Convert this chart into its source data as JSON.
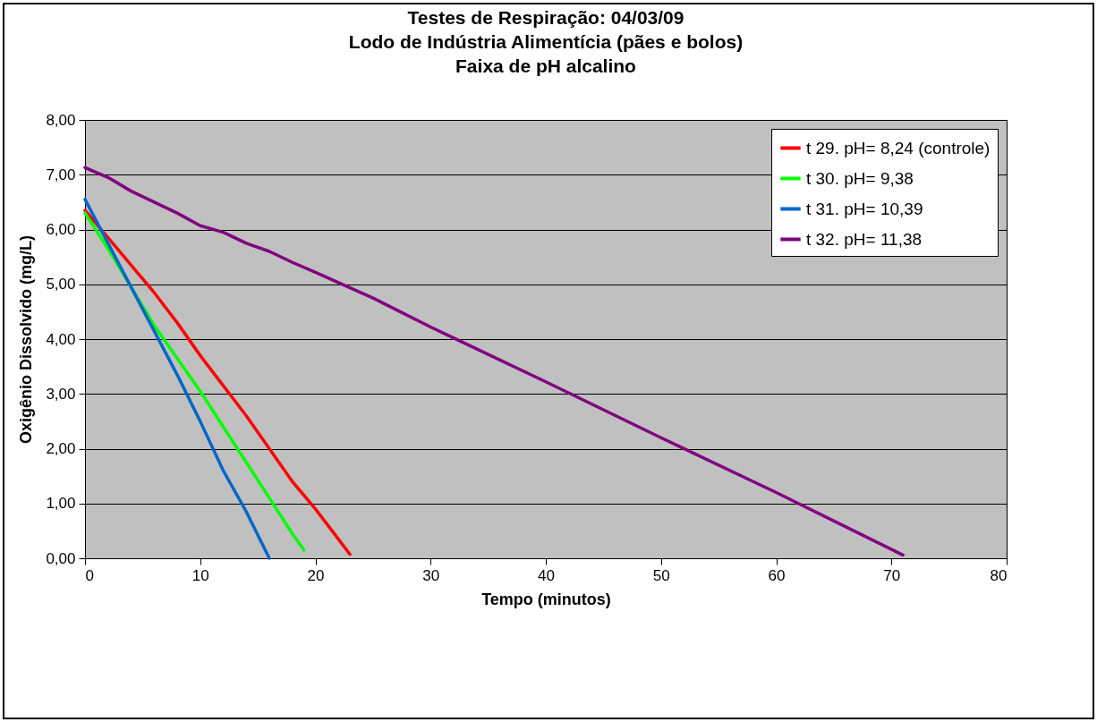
{
  "chart_data": {
    "type": "line",
    "title": "Testes de Respiração: 04/03/09\nLodo de Indústria Alimentícia (pães e bolos)\nFaixa de pH alcalino",
    "xlabel": "Tempo (minutos)",
    "ylabel": "Oxigênio Dissolvido (mg/L)",
    "xlim": [
      0,
      80
    ],
    "xticks": [
      0,
      10,
      20,
      30,
      40,
      50,
      60,
      70,
      80
    ],
    "ylim": [
      0,
      8
    ],
    "yticks": [
      {
        "value": 0,
        "label": "0,00"
      },
      {
        "value": 1,
        "label": "1,00"
      },
      {
        "value": 2,
        "label": "2,00"
      },
      {
        "value": 3,
        "label": "3,00"
      },
      {
        "value": 4,
        "label": "4,00"
      },
      {
        "value": 5,
        "label": "5,00"
      },
      {
        "value": 6,
        "label": "6,00"
      },
      {
        "value": 7,
        "label": "7,00"
      },
      {
        "value": 8,
        "label": "8,00"
      }
    ],
    "grid": "y",
    "legend": "top right",
    "marker": "none",
    "line_style": "solid",
    "series": [
      {
        "name": "t 29. pH= 8,24 (controle)",
        "color": "#ff0000",
        "x": [
          0,
          2,
          4,
          6,
          8,
          10,
          12,
          14,
          16,
          18,
          20,
          22,
          23
        ],
        "values": [
          6.35,
          5.85,
          5.35,
          4.85,
          4.3,
          3.7,
          3.15,
          2.6,
          2.0,
          1.4,
          0.9,
          0.35,
          0.07
        ]
      },
      {
        "name": "t 30. pH= 9,38",
        "color": "#00ff00",
        "x": [
          0,
          2,
          3,
          5,
          6,
          8,
          10,
          12,
          14,
          16,
          18,
          19
        ],
        "values": [
          6.3,
          5.65,
          5.3,
          4.6,
          4.25,
          3.65,
          3.05,
          2.4,
          1.75,
          1.1,
          0.45,
          0.15
        ]
      },
      {
        "name": "t 31. pH= 10,39",
        "color": "#0066cc",
        "x": [
          0,
          2,
          4,
          6,
          8,
          10,
          12,
          14,
          16
        ],
        "values": [
          6.55,
          5.75,
          4.95,
          4.15,
          3.35,
          2.5,
          1.6,
          0.85,
          0.0
        ]
      },
      {
        "name": "t 32. pH= 11,38",
        "color": "#800080",
        "x": [
          0,
          2,
          4,
          6,
          8,
          10,
          12,
          14,
          16,
          18,
          20,
          25,
          30,
          40,
          50,
          60,
          71
        ],
        "values": [
          7.13,
          6.95,
          6.7,
          6.5,
          6.3,
          6.07,
          5.95,
          5.75,
          5.6,
          5.4,
          5.22,
          4.75,
          4.22,
          3.22,
          2.2,
          1.2,
          0.06
        ]
      }
    ]
  }
}
